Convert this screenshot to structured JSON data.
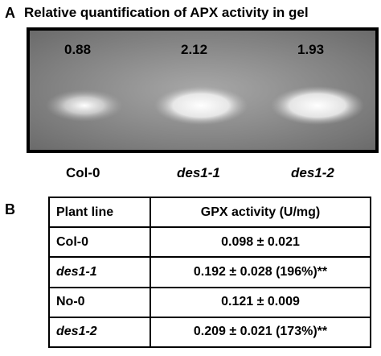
{
  "panel_a": {
    "label": "A",
    "title": "Relative quantification of APX activity in gel",
    "lanes": [
      {
        "value": "0.88",
        "name": "Col-0"
      },
      {
        "value": "2.12",
        "name": "des1-1"
      },
      {
        "value": "1.93",
        "name": "des1-2"
      }
    ]
  },
  "panel_b": {
    "label": "B",
    "table": {
      "header": [
        "Plant line",
        "GPX activity (U/mg)"
      ],
      "rows": [
        [
          "Col-0",
          "0.098 ± 0.021"
        ],
        [
          "des1-1",
          "0.192 ± 0.028 (196%)**"
        ],
        [
          "No-0",
          "0.121 ± 0.009"
        ],
        [
          "des1-2",
          "0.209 ± 0.021 (173%)**"
        ]
      ]
    }
  }
}
